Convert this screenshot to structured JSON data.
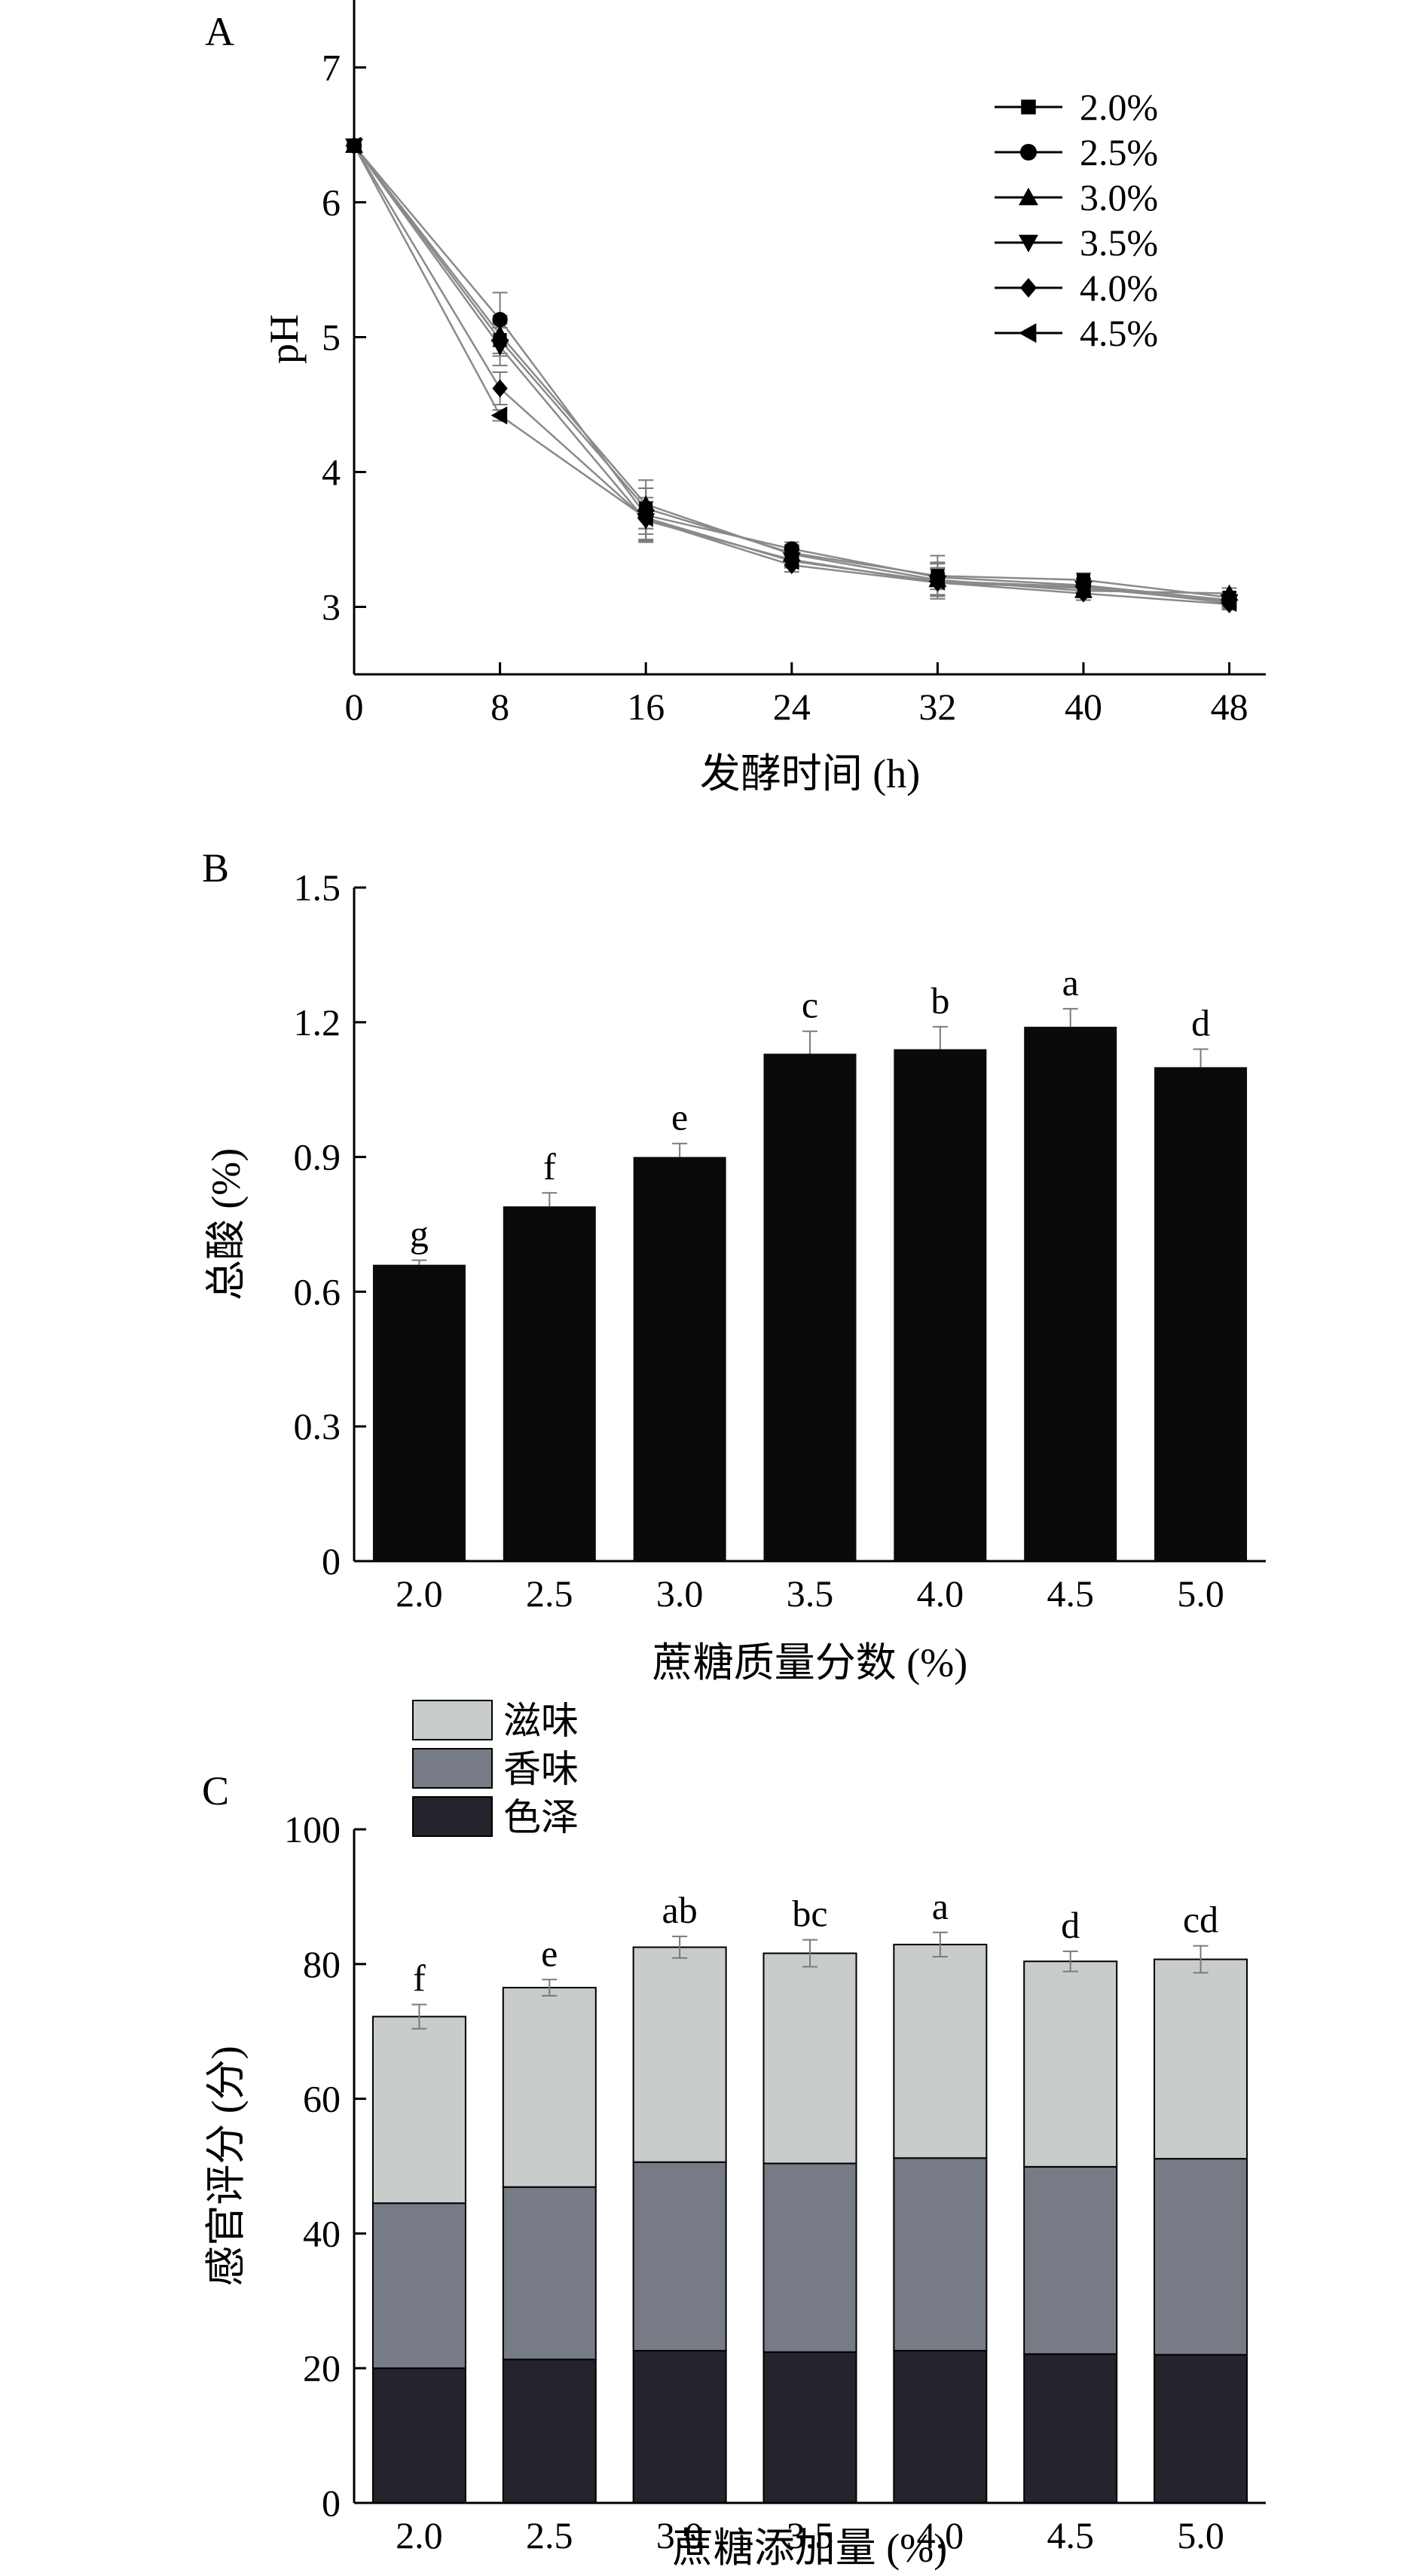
{
  "colors": {
    "axis": "#000000",
    "line": "#8a8a8a",
    "errorbar": "#7a7a7a",
    "bar_b": "#0a0a0a",
    "stack_taste": "#c8cccb",
    "stack_aroma": "#767b86",
    "stack_color": "#25232c"
  },
  "chart_data": [
    {
      "panel": "A",
      "type": "line",
      "xlabel": "发酵时间 (h)",
      "ylabel": "pH",
      "x": [
        0,
        8,
        16,
        24,
        32,
        40,
        48
      ],
      "xlim": [
        0,
        50
      ],
      "ylim": [
        2.5,
        7.5
      ],
      "xticks": [
        "0",
        "8",
        "16",
        "24",
        "32",
        "40",
        "48"
      ],
      "yticks": [
        "3",
        "4",
        "5",
        "6",
        "7"
      ],
      "legend_position": "top-right",
      "series": [
        {
          "name": "2.0%",
          "marker": "square",
          "values": [
            6.42,
            4.98,
            3.73,
            3.4,
            3.23,
            3.2,
            3.07
          ],
          "err": [
            0.03,
            0.12,
            0.15,
            0.06,
            0.1,
            0.05,
            0.04
          ]
        },
        {
          "name": "2.5%",
          "marker": "circle",
          "values": [
            6.42,
            5.13,
            3.68,
            3.43,
            3.22,
            3.16,
            3.05
          ],
          "err": [
            0.03,
            0.2,
            0.2,
            0.05,
            0.16,
            0.05,
            0.04
          ]
        },
        {
          "name": "3.0%",
          "marker": "triangle-up",
          "values": [
            6.42,
            5.02,
            3.76,
            3.39,
            3.2,
            3.12,
            3.1
          ],
          "err": [
            0.03,
            0.14,
            0.18,
            0.06,
            0.12,
            0.05,
            0.04
          ]
        },
        {
          "name": "3.5%",
          "marker": "triangle-down",
          "values": [
            6.42,
            4.93,
            3.64,
            3.35,
            3.18,
            3.14,
            3.04
          ],
          "err": [
            0.03,
            0.14,
            0.14,
            0.05,
            0.1,
            0.05,
            0.04
          ]
        },
        {
          "name": "4.0%",
          "marker": "diamond",
          "values": [
            6.42,
            4.62,
            3.65,
            3.31,
            3.18,
            3.1,
            3.02
          ],
          "err": [
            0.03,
            0.12,
            0.16,
            0.05,
            0.1,
            0.05,
            0.04
          ]
        },
        {
          "name": "4.5%",
          "marker": "triangle-left",
          "values": [
            6.42,
            4.42,
            3.66,
            3.34,
            3.19,
            3.15,
            3.03
          ],
          "err": [
            0.03,
            0.04,
            0.12,
            0.05,
            0.1,
            0.05,
            0.04
          ]
        }
      ]
    },
    {
      "panel": "B",
      "type": "bar",
      "xlabel": "蔗糖质量分数 (%)",
      "ylabel": "总酸 (%)",
      "categories": [
        "2.0",
        "2.5",
        "3.0",
        "3.5",
        "4.0",
        "4.5",
        "5.0"
      ],
      "values": [
        0.66,
        0.79,
        0.9,
        1.13,
        1.14,
        1.19,
        1.1
      ],
      "err": [
        0.01,
        0.03,
        0.03,
        0.05,
        0.05,
        0.04,
        0.04
      ],
      "labels": [
        "g",
        "f",
        "e",
        "c",
        "b",
        "a",
        "d"
      ],
      "ylim": [
        0,
        1.5
      ],
      "yticks": [
        "0",
        "0.3",
        "0.6",
        "0.9",
        "1.2",
        "1.5"
      ]
    },
    {
      "panel": "C",
      "type": "bar",
      "stacked": true,
      "xlabel": "蔗糖添加量 (%)",
      "ylabel": "感官评分 (分)",
      "categories": [
        "2.0",
        "2.5",
        "3.0",
        "3.5",
        "4.0",
        "4.5",
        "5.0"
      ],
      "legend_position": "top-left",
      "series": [
        {
          "name": "色泽",
          "values": [
            20.0,
            21.3,
            22.6,
            22.4,
            22.6,
            22.1,
            22.0
          ]
        },
        {
          "name": "香味",
          "values": [
            24.5,
            25.6,
            28.0,
            28.0,
            28.6,
            27.8,
            29.1
          ]
        },
        {
          "name": "滋味",
          "values": [
            27.7,
            29.6,
            31.9,
            31.2,
            31.7,
            30.5,
            29.6
          ]
        }
      ],
      "totals_err": [
        1.8,
        1.2,
        1.6,
        2.0,
        1.8,
        1.5,
        2.0
      ],
      "labels": [
        "f",
        "e",
        "ab",
        "bc",
        "a",
        "d",
        "cd"
      ],
      "ylim": [
        0,
        100
      ],
      "yticks": [
        "0",
        "20",
        "40",
        "60",
        "80",
        "100"
      ]
    }
  ]
}
